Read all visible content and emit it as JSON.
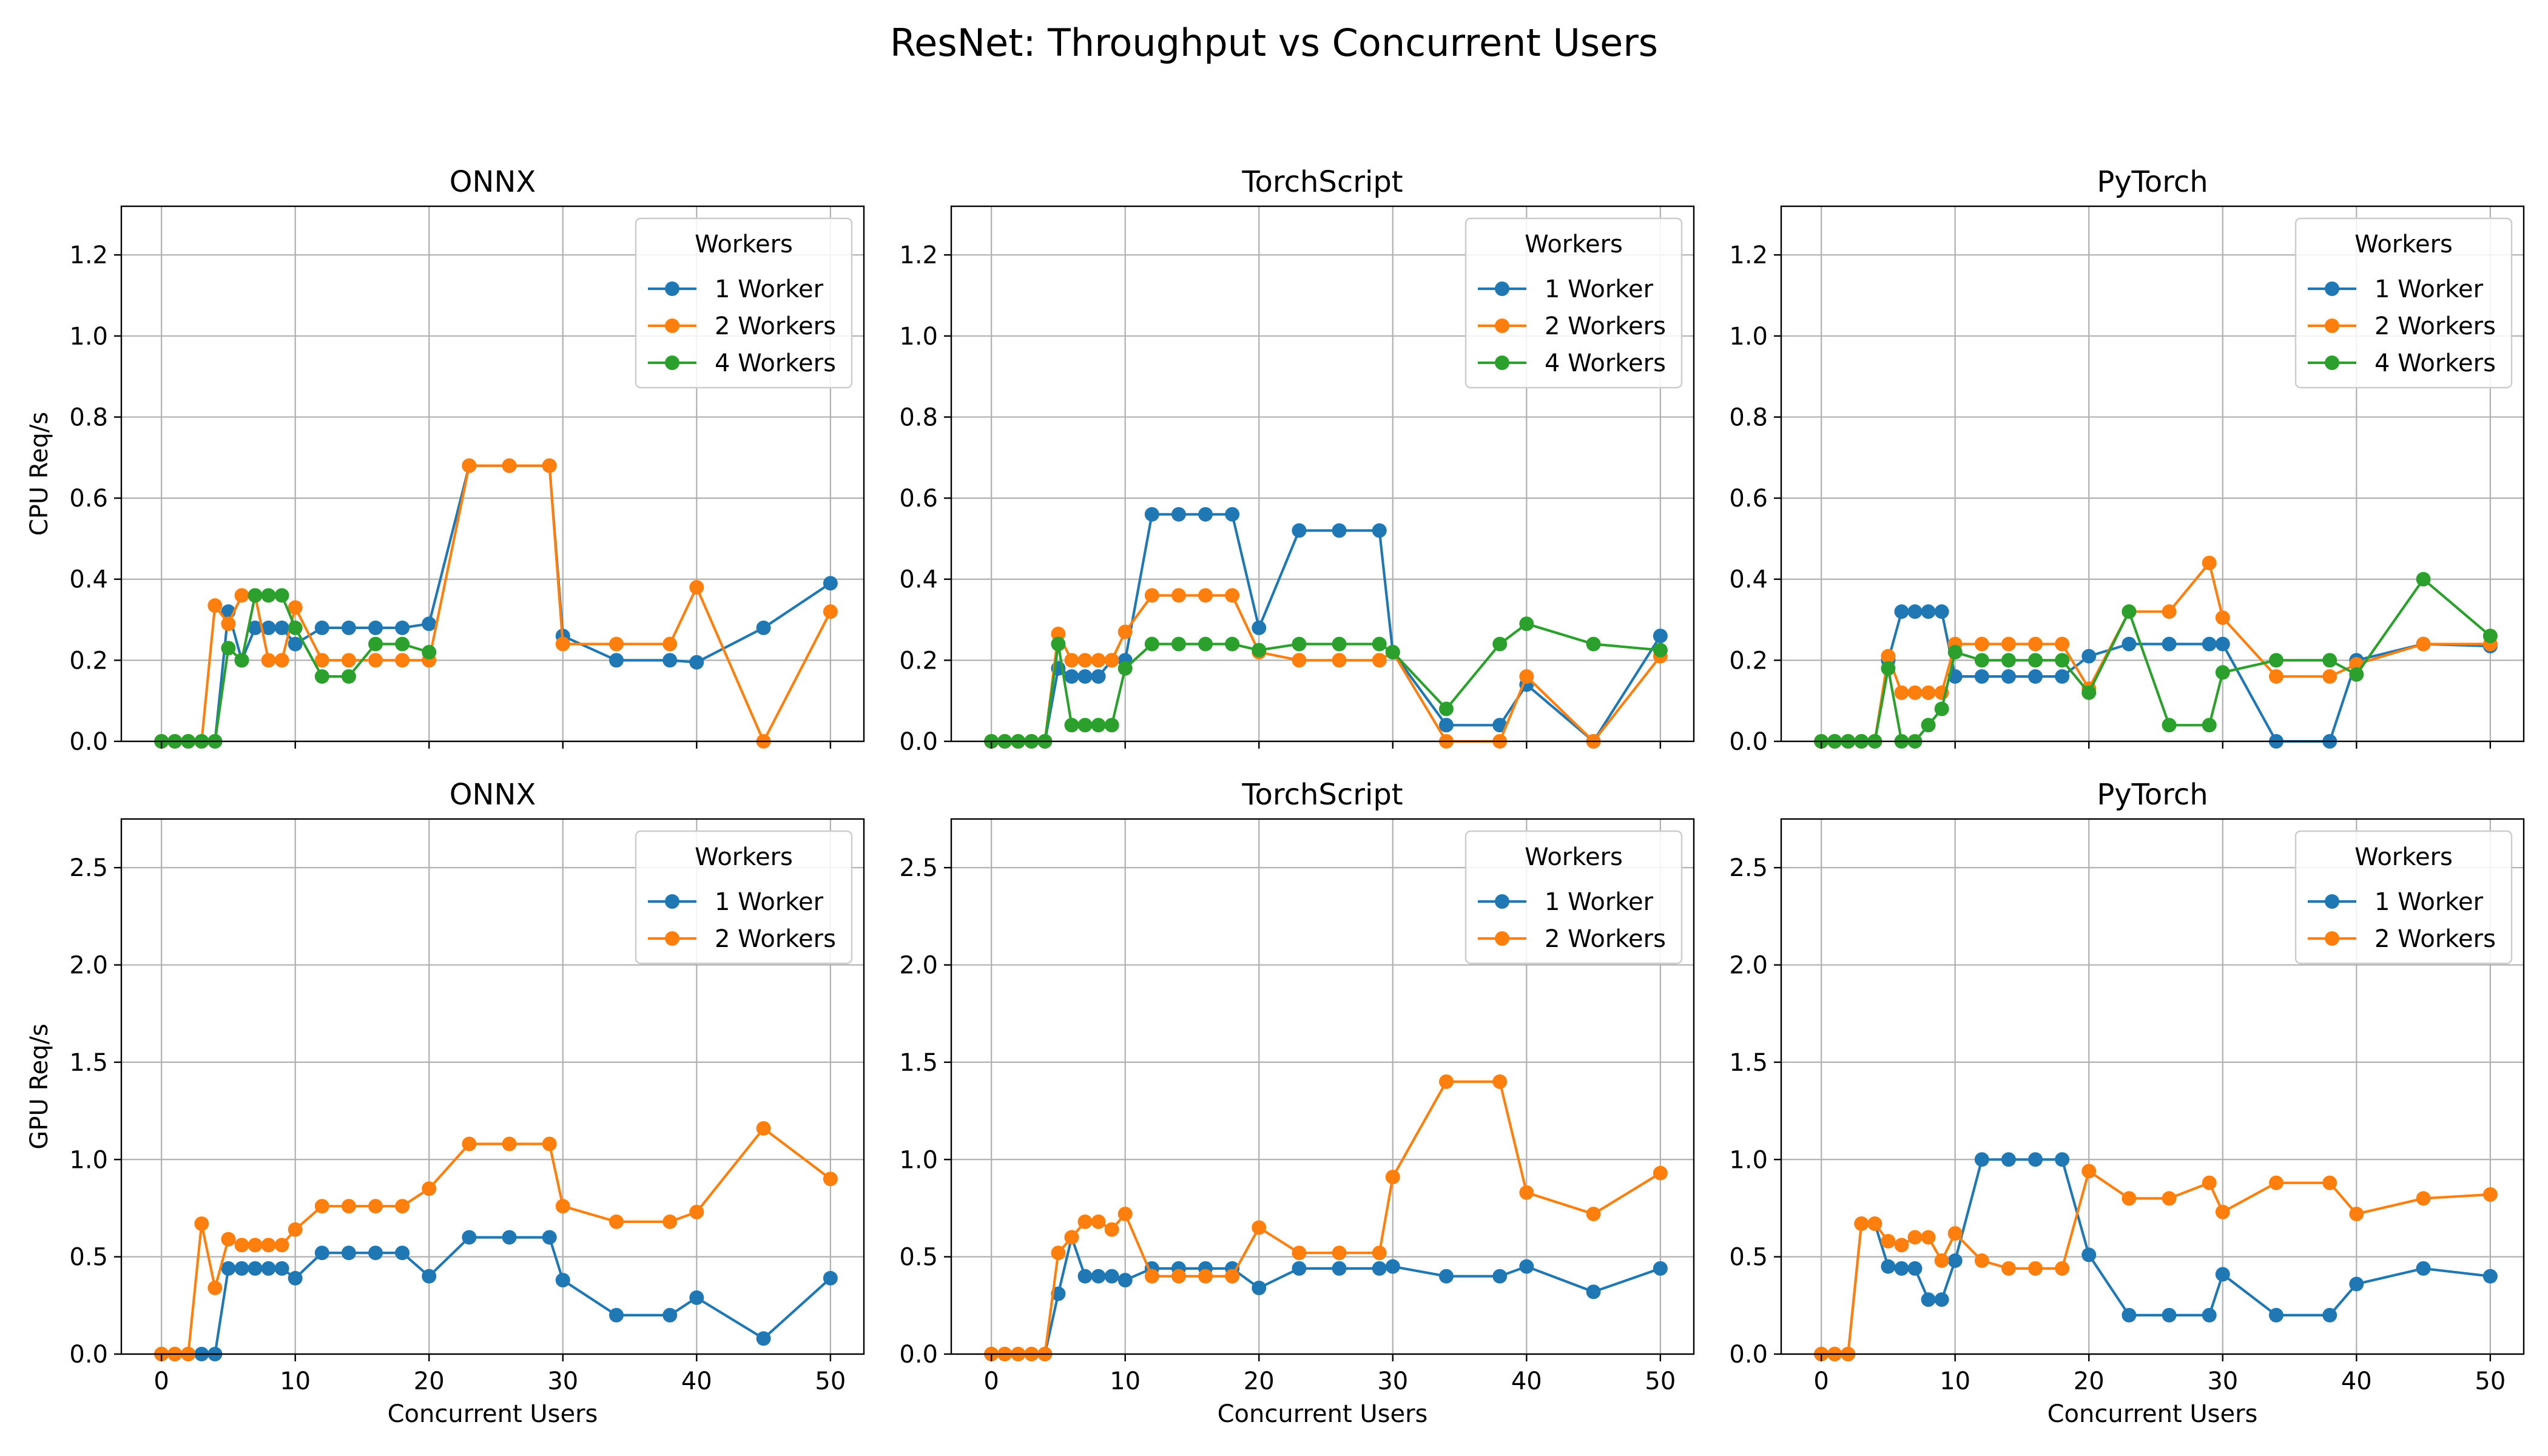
{
  "figure_title": "ResNet: Throughput vs Concurrent Users",
  "legend_title": "Workers",
  "colors": {
    "1 Worker": "#1f77b4",
    "2 Workers": "#ff7f0e",
    "4 Workers": "#2ca02c"
  },
  "chart_data": [
    {
      "type": "line",
      "title": "ONNX",
      "ylabel": "CPU Req/s",
      "xlabel": "",
      "xlim": [
        -3,
        52.5
      ],
      "ylim": [
        0,
        1.32
      ],
      "xticks": [
        0,
        10,
        20,
        30,
        40,
        50
      ],
      "yticks": [
        0.0,
        0.2,
        0.4,
        0.6,
        0.8,
        1.0,
        1.2
      ],
      "yfmt": 1,
      "grid": true,
      "legend": "top-right",
      "series": [
        {
          "name": "1 Worker",
          "x": [
            0,
            1,
            2,
            3,
            4,
            5,
            6,
            7,
            8,
            9,
            10,
            12,
            14,
            16,
            18,
            20,
            23,
            26,
            29,
            30,
            34,
            38,
            40,
            45,
            50
          ],
          "y": [
            0,
            0,
            0,
            0,
            0,
            0.32,
            0.2,
            0.28,
            0.28,
            0.28,
            0.24,
            0.28,
            0.28,
            0.28,
            0.28,
            0.29,
            0.68,
            0.68,
            0.68,
            0.26,
            0.2,
            0.2,
            0.195,
            0.28,
            0.39
          ]
        },
        {
          "name": "2 Workers",
          "x": [
            0,
            1,
            2,
            3,
            4,
            5,
            6,
            7,
            8,
            9,
            10,
            12,
            14,
            16,
            18,
            20,
            23,
            26,
            29,
            30,
            34,
            38,
            40,
            45,
            50
          ],
          "y": [
            0,
            0,
            0,
            0,
            0.335,
            0.29,
            0.36,
            0.36,
            0.2,
            0.2,
            0.33,
            0.2,
            0.2,
            0.2,
            0.2,
            0.2,
            0.68,
            0.68,
            0.68,
            0.24,
            0.24,
            0.24,
            0.38,
            0,
            0.32
          ]
        },
        {
          "name": "4 Workers",
          "x": [
            0,
            1,
            2,
            3,
            4,
            5,
            6,
            7,
            8,
            9,
            10,
            12,
            14,
            16,
            18,
            20
          ],
          "y": [
            0,
            0,
            0,
            0,
            0,
            0.23,
            0.2,
            0.36,
            0.36,
            0.36,
            0.28,
            0.16,
            0.16,
            0.24,
            0.24,
            0.22
          ]
        }
      ]
    },
    {
      "type": "line",
      "title": "TorchScript",
      "ylabel": "",
      "xlabel": "",
      "xlim": [
        -3,
        52.5
      ],
      "ylim": [
        0,
        1.32
      ],
      "xticks": [
        0,
        10,
        20,
        30,
        40,
        50
      ],
      "yticks": [
        0.0,
        0.2,
        0.4,
        0.6,
        0.8,
        1.0,
        1.2
      ],
      "yfmt": 1,
      "grid": true,
      "legend": "top-right",
      "series": [
        {
          "name": "1 Worker",
          "x": [
            0,
            1,
            2,
            3,
            4,
            5,
            6,
            7,
            8,
            9,
            10,
            12,
            14,
            16,
            18,
            20,
            23,
            26,
            29,
            30,
            34,
            38,
            40,
            45,
            50
          ],
          "y": [
            0,
            0,
            0,
            0,
            0,
            0.18,
            0.16,
            0.16,
            0.16,
            0.2,
            0.2,
            0.56,
            0.56,
            0.56,
            0.56,
            0.28,
            0.52,
            0.52,
            0.52,
            0.22,
            0.04,
            0.04,
            0.14,
            0,
            0.26
          ]
        },
        {
          "name": "2 Workers",
          "x": [
            0,
            1,
            2,
            3,
            4,
            5,
            6,
            7,
            8,
            9,
            10,
            12,
            14,
            16,
            18,
            20,
            23,
            26,
            29,
            30,
            34,
            38,
            40,
            45,
            50
          ],
          "y": [
            0,
            0,
            0,
            0,
            0,
            0.265,
            0.2,
            0.2,
            0.2,
            0.2,
            0.27,
            0.36,
            0.36,
            0.36,
            0.36,
            0.22,
            0.2,
            0.2,
            0.2,
            0.22,
            0,
            0,
            0.16,
            0,
            0.21
          ]
        },
        {
          "name": "4 Workers",
          "x": [
            0,
            1,
            2,
            3,
            4,
            5,
            6,
            7,
            8,
            9,
            10,
            12,
            14,
            16,
            18,
            20,
            23,
            26,
            29,
            30,
            34,
            38,
            40,
            45,
            50
          ],
          "y": [
            0,
            0,
            0,
            0,
            0,
            0.24,
            0.04,
            0.04,
            0.04,
            0.04,
            0.18,
            0.24,
            0.24,
            0.24,
            0.24,
            0.225,
            0.24,
            0.24,
            0.24,
            0.22,
            0.08,
            0.24,
            0.29,
            0.24,
            0.225
          ]
        }
      ]
    },
    {
      "type": "line",
      "title": "PyTorch",
      "ylabel": "",
      "xlabel": "",
      "xlim": [
        -3,
        52.5
      ],
      "ylim": [
        0,
        1.32
      ],
      "xticks": [
        0,
        10,
        20,
        30,
        40,
        50
      ],
      "yticks": [
        0.0,
        0.2,
        0.4,
        0.6,
        0.8,
        1.0,
        1.2
      ],
      "yfmt": 1,
      "grid": true,
      "legend": "top-right",
      "series": [
        {
          "name": "1 Worker",
          "x": [
            0,
            1,
            2,
            3,
            4,
            5,
            6,
            7,
            8,
            9,
            10,
            12,
            14,
            16,
            18,
            20,
            23,
            26,
            29,
            30,
            34,
            38,
            40,
            45,
            50
          ],
          "y": [
            0,
            0,
            0,
            0,
            0,
            0.2,
            0.32,
            0.32,
            0.32,
            0.32,
            0.16,
            0.16,
            0.16,
            0.16,
            0.16,
            0.21,
            0.24,
            0.24,
            0.24,
            0.24,
            0,
            0,
            0.2,
            0.24,
            0.235
          ]
        },
        {
          "name": "2 Workers",
          "x": [
            0,
            1,
            2,
            3,
            4,
            5,
            6,
            7,
            8,
            9,
            10,
            12,
            14,
            16,
            18,
            20,
            23,
            26,
            29,
            30,
            34,
            38,
            40,
            45,
            50
          ],
          "y": [
            0,
            0,
            0,
            0,
            0,
            0.21,
            0.12,
            0.12,
            0.12,
            0.12,
            0.24,
            0.24,
            0.24,
            0.24,
            0.24,
            0.13,
            0.32,
            0.32,
            0.44,
            0.305,
            0.16,
            0.16,
            0.19,
            0.24,
            0.24
          ]
        },
        {
          "name": "4 Workers",
          "x": [
            0,
            1,
            2,
            3,
            4,
            5,
            6,
            7,
            8,
            9,
            10,
            12,
            14,
            16,
            18,
            20,
            23,
            26,
            29,
            30,
            34,
            38,
            40,
            45,
            50
          ],
          "y": [
            0,
            0,
            0,
            0,
            0,
            0.18,
            0,
            0,
            0.04,
            0.08,
            0.22,
            0.2,
            0.2,
            0.2,
            0.2,
            0.12,
            0.32,
            0.04,
            0.04,
            0.17,
            0.2,
            0.2,
            0.165,
            0.4,
            0.26
          ]
        }
      ]
    },
    {
      "type": "line",
      "title": "ONNX",
      "ylabel": "GPU Req/s",
      "xlabel": "Concurrent Users",
      "xlim": [
        -3,
        52.5
      ],
      "ylim": [
        0,
        2.75
      ],
      "xticks": [
        0,
        10,
        20,
        30,
        40,
        50
      ],
      "yticks": [
        0.0,
        0.5,
        1.0,
        1.5,
        2.0,
        2.5
      ],
      "yfmt": 1,
      "grid": true,
      "legend": "top-right",
      "series": [
        {
          "name": "1 Worker",
          "x": [
            0,
            1,
            2,
            3,
            4,
            5,
            6,
            7,
            8,
            9,
            10,
            12,
            14,
            16,
            18,
            20,
            23,
            26,
            29,
            30,
            34,
            38,
            40,
            45,
            50
          ],
          "y": [
            0,
            0,
            0,
            0,
            0,
            0.44,
            0.44,
            0.44,
            0.44,
            0.44,
            0.39,
            0.52,
            0.52,
            0.52,
            0.52,
            0.4,
            0.6,
            0.6,
            0.6,
            0.38,
            0.2,
            0.2,
            0.29,
            0.08,
            0.39
          ]
        },
        {
          "name": "2 Workers",
          "x": [
            0,
            1,
            2,
            3,
            4,
            5,
            6,
            7,
            8,
            9,
            10,
            12,
            14,
            16,
            18,
            20,
            23,
            26,
            29,
            30,
            34,
            38,
            40,
            45,
            50
          ],
          "y": [
            0,
            0,
            0,
            0.67,
            0.34,
            0.59,
            0.56,
            0.56,
            0.56,
            0.56,
            0.64,
            0.76,
            0.76,
            0.76,
            0.76,
            0.85,
            1.08,
            1.08,
            1.08,
            0.76,
            0.68,
            0.68,
            0.73,
            1.16,
            0.9
          ]
        }
      ]
    },
    {
      "type": "line",
      "title": "TorchScript",
      "ylabel": "",
      "xlabel": "Concurrent Users",
      "xlim": [
        -3,
        52.5
      ],
      "ylim": [
        0,
        2.75
      ],
      "xticks": [
        0,
        10,
        20,
        30,
        40,
        50
      ],
      "yticks": [
        0.0,
        0.5,
        1.0,
        1.5,
        2.0,
        2.5
      ],
      "yfmt": 1,
      "grid": true,
      "legend": "top-right",
      "series": [
        {
          "name": "1 Worker",
          "x": [
            0,
            1,
            2,
            3,
            4,
            5,
            6,
            7,
            8,
            9,
            10,
            12,
            14,
            16,
            18,
            20,
            23,
            26,
            29,
            30,
            34,
            38,
            40,
            45,
            50
          ],
          "y": [
            0,
            0,
            0,
            0,
            0,
            0.31,
            0.6,
            0.4,
            0.4,
            0.4,
            0.38,
            0.44,
            0.44,
            0.44,
            0.44,
            0.34,
            0.44,
            0.44,
            0.44,
            0.45,
            0.4,
            0.4,
            0.45,
            0.32,
            0.44
          ]
        },
        {
          "name": "2 Workers",
          "x": [
            0,
            1,
            2,
            3,
            4,
            5,
            6,
            7,
            8,
            9,
            10,
            12,
            14,
            16,
            18,
            20,
            23,
            26,
            29,
            30,
            34,
            38,
            40,
            45,
            50
          ],
          "y": [
            0,
            0,
            0,
            0,
            0,
            0.52,
            0.6,
            0.68,
            0.68,
            0.64,
            0.72,
            0.4,
            0.4,
            0.4,
            0.4,
            0.65,
            0.52,
            0.52,
            0.52,
            0.91,
            1.4,
            1.4,
            0.83,
            0.72,
            0.93
          ]
        }
      ]
    },
    {
      "type": "line",
      "title": "PyTorch",
      "ylabel": "",
      "xlabel": "Concurrent Users",
      "xlim": [
        -3,
        52.5
      ],
      "ylim": [
        0,
        2.75
      ],
      "xticks": [
        0,
        10,
        20,
        30,
        40,
        50
      ],
      "yticks": [
        0.0,
        0.5,
        1.0,
        1.5,
        2.0,
        2.5
      ],
      "yfmt": 1,
      "grid": true,
      "legend": "top-right",
      "series": [
        {
          "name": "1 Worker",
          "x": [
            0,
            1,
            2,
            3,
            4,
            5,
            6,
            7,
            8,
            9,
            10,
            12,
            14,
            16,
            18,
            20,
            23,
            26,
            29,
            30,
            34,
            38,
            40,
            45,
            50
          ],
          "y": [
            0,
            0,
            0,
            0.67,
            0.67,
            0.45,
            0.44,
            0.44,
            0.28,
            0.28,
            0.48,
            1.0,
            1.0,
            1.0,
            1.0,
            0.51,
            0.2,
            0.2,
            0.2,
            0.41,
            0.2,
            0.2,
            0.36,
            0.44,
            0.4
          ]
        },
        {
          "name": "2 Workers",
          "x": [
            0,
            1,
            2,
            3,
            4,
            5,
            6,
            7,
            8,
            9,
            10,
            12,
            14,
            16,
            18,
            20,
            23,
            26,
            29,
            30,
            34,
            38,
            40,
            45,
            50
          ],
          "y": [
            0,
            0,
            0,
            0.67,
            0.67,
            0.58,
            0.56,
            0.6,
            0.6,
            0.48,
            0.62,
            0.48,
            0.44,
            0.44,
            0.44,
            0.94,
            0.8,
            0.8,
            0.88,
            0.73,
            0.88,
            0.88,
            0.72,
            0.8,
            0.82
          ]
        }
      ]
    }
  ]
}
